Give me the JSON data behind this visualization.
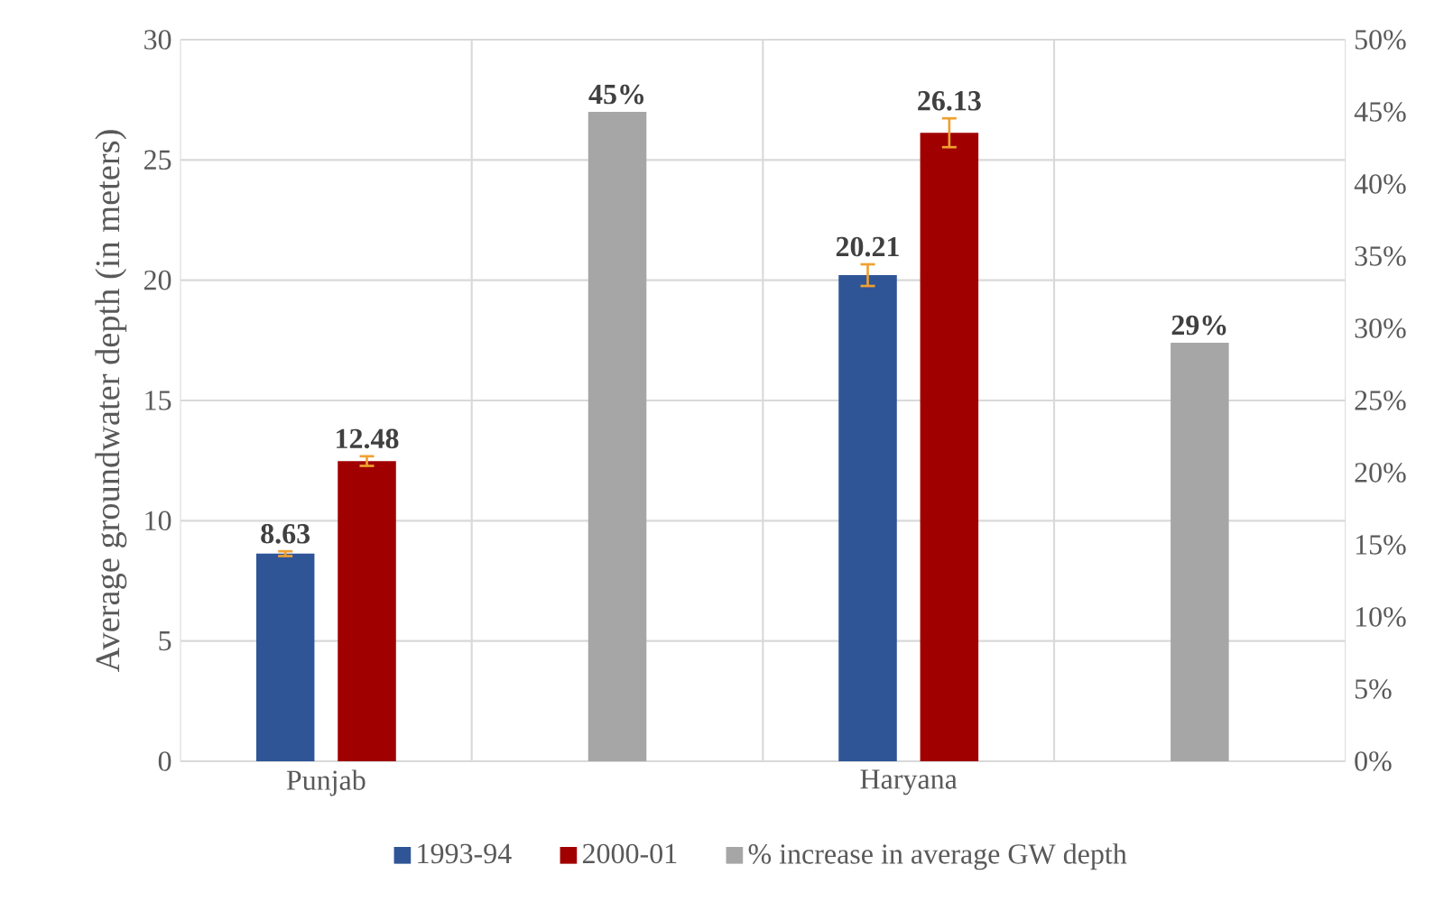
{
  "chart_data": {
    "type": "bar",
    "ylabel": "Average groundwater depth (in meters)",
    "categories": [
      "Punjab",
      null,
      "Haryana",
      null
    ],
    "series": [
      {
        "name": "1993-94",
        "color": "#2f5597",
        "values": [
          8.63,
          null,
          20.21,
          null
        ],
        "errors": [
          0.1,
          null,
          0.45,
          null
        ],
        "value_labels": [
          "8.63",
          null,
          "20.21",
          null
        ]
      },
      {
        "name": "2000-01",
        "color": "#a00000",
        "values": [
          12.48,
          null,
          26.13,
          null
        ],
        "errors": [
          0.2,
          null,
          0.6,
          null
        ],
        "value_labels": [
          "12.48",
          null,
          "26.13",
          null
        ]
      },
      {
        "name": "% increase in average GW depth",
        "color": "#a6a6a6",
        "axis": "y2",
        "values": [
          null,
          45,
          null,
          29
        ],
        "value_labels": [
          null,
          "45%",
          null,
          "29%"
        ]
      }
    ],
    "ylim": [
      0,
      30
    ],
    "yticks": [
      0,
      5,
      10,
      15,
      20,
      25,
      30
    ],
    "y2lim": [
      0,
      50
    ],
    "y2ticks": [
      {
        "value": 0,
        "label": "0%"
      },
      {
        "value": 5,
        "label": "5%"
      },
      {
        "value": 10,
        "label": "10%"
      },
      {
        "value": 15,
        "label": "15%"
      },
      {
        "value": 20,
        "label": "20%"
      },
      {
        "value": 25,
        "label": "25%"
      },
      {
        "value": 30,
        "label": "30%"
      },
      {
        "value": 35,
        "label": "35%"
      },
      {
        "value": 40,
        "label": "40%"
      },
      {
        "value": 45,
        "label": "45%"
      },
      {
        "value": 50,
        "label": "50%"
      }
    ],
    "grid": true,
    "legend": "bottom"
  }
}
